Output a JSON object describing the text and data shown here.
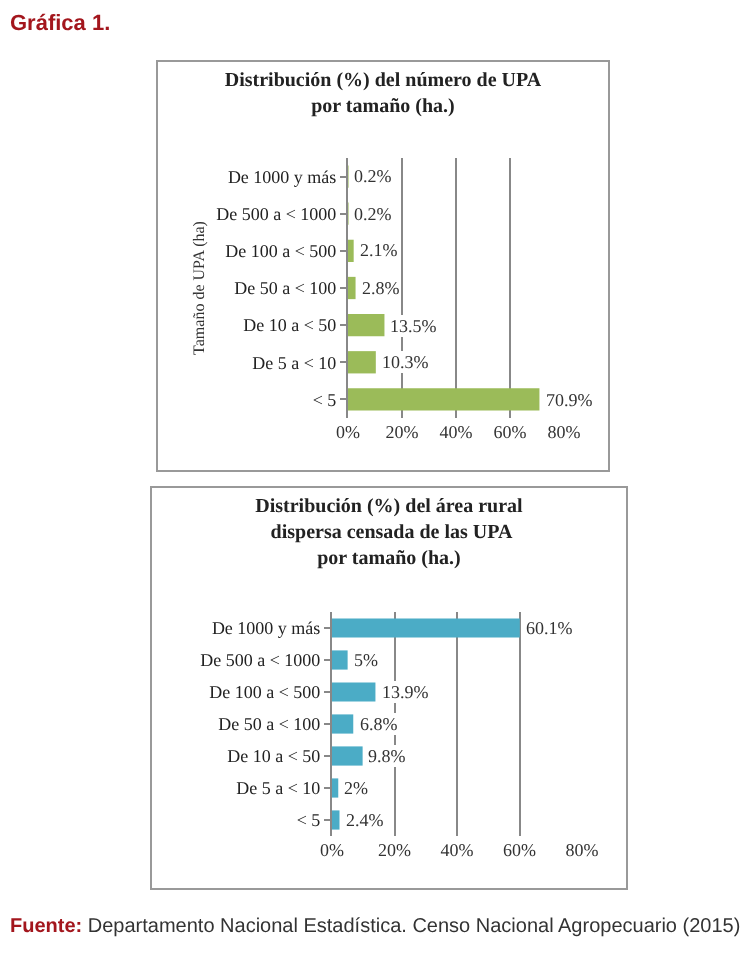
{
  "chart_data": [
    {
      "type": "bar",
      "orientation": "horizontal",
      "title": "Distribución (%) del número de UPA por tamaño (ha.)",
      "ylabel": "Tamaño de UPA (ha)",
      "annotations": [
        "Gráfica 1."
      ],
      "categories": [
        "De 1000 y más",
        "De 500 a < 1000",
        "De 100 a < 500",
        "De 50 a < 100",
        "De 10 a < 50",
        "De 5 a < 10",
        "< 5"
      ],
      "values": [
        0.2,
        0.2,
        2.1,
        2.8,
        13.5,
        10.3,
        70.9
      ],
      "value_labels": [
        "0.2%",
        "0.2%",
        "2.1%",
        "2.8%",
        "13.5%",
        "10.3%",
        "70.9%"
      ],
      "color": "#9bbb59",
      "xlim": [
        0,
        80
      ],
      "xticks": [
        {
          "value": 0,
          "label": "0%"
        },
        {
          "value": 20,
          "label": "20%"
        },
        {
          "value": 40,
          "label": "40%"
        },
        {
          "value": 60,
          "label": "60%"
        },
        {
          "value": 80,
          "label": "80%"
        }
      ],
      "grid": "x",
      "legend": false
    },
    {
      "type": "bar",
      "orientation": "horizontal",
      "title": "Distribución (%) del área rural dispersa censada de las UPA por tamaño (ha.)",
      "annotations": [
        "Fuente: Departamento Nacional Estadística. Censo Nacional Agropecuario (2015)"
      ],
      "categories": [
        "De 1000 y más",
        "De 500 a < 1000",
        "De 100 a < 500",
        "De 50 a < 100",
        "De 10 a < 50",
        "De 5 a < 10",
        "< 5"
      ],
      "values": [
        60.1,
        5,
        13.9,
        6.8,
        9.8,
        2,
        2.4
      ],
      "value_labels": [
        "60.1%",
        "5%",
        "13.9%",
        "6.8%",
        "9.8%",
        "2%",
        "2.4%"
      ],
      "color": "#4bacc6",
      "xlim": [
        0,
        80
      ],
      "xticks": [
        {
          "value": 0,
          "label": "0%"
        },
        {
          "value": 20,
          "label": "20%"
        },
        {
          "value": 40,
          "label": "40%"
        },
        {
          "value": 60,
          "label": "60%"
        },
        {
          "value": 80,
          "label": "80%"
        }
      ],
      "grid": "x",
      "legend": false
    }
  ]
}
